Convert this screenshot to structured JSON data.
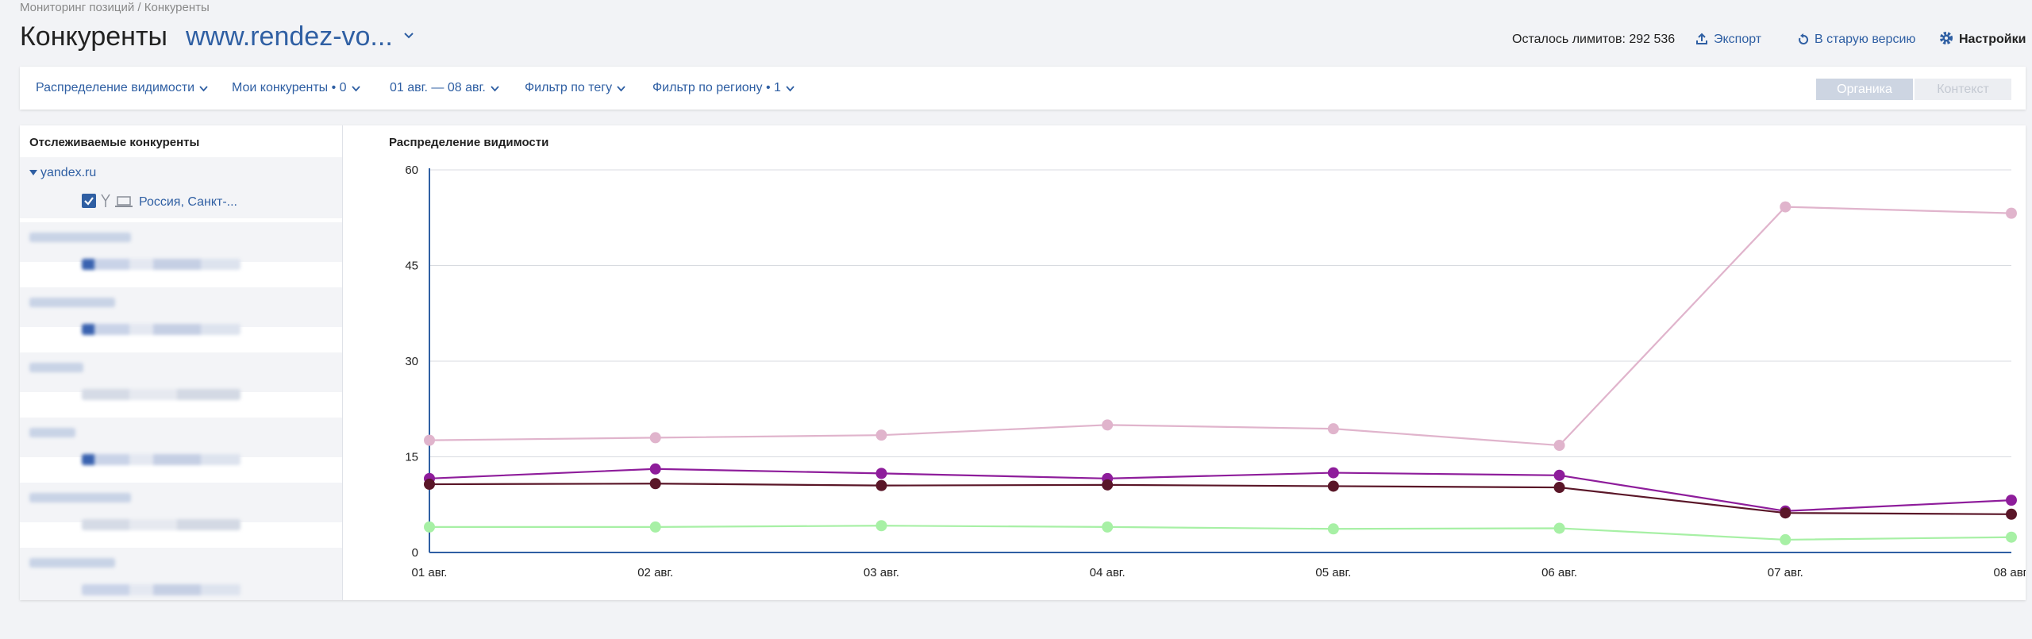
{
  "breadcrumb": "Мониторинг позиций / Конкуренты",
  "header": {
    "title": "Конкуренты",
    "site": "www.rendez-vo...",
    "limits": "Осталось лимитов: 292 536",
    "export_label": "Экспорт",
    "old_version_label": "В старую версию",
    "settings_label": "Настройки"
  },
  "filters": {
    "visibility": "Распределение видимости",
    "competitors": "Мои конкуренты • 0",
    "dates": "01 авг. — 08 авг.",
    "tag": "Фильтр по тегу",
    "region": "Фильтр по региону • 1",
    "organic": "Органика",
    "context": "Контекст"
  },
  "sidebar": {
    "heading": "Отслеживаемые конкуренты",
    "domain": "yandex.ru",
    "region": "Россия, Санкт-..."
  },
  "chart_data": {
    "type": "line",
    "title": "Распределение видимости",
    "x": [
      "01 авг.",
      "02 авг.",
      "03 авг.",
      "04 авг.",
      "05 авг.",
      "06 авг.",
      "07 авг.",
      "08 авг."
    ],
    "yticks": [
      0,
      15,
      30,
      45,
      60
    ],
    "ylim": [
      0,
      60
    ],
    "grid": true,
    "series": [
      {
        "color": "#e0b4cc",
        "values": [
          17.6,
          18.0,
          18.4,
          20.0,
          19.4,
          16.8,
          54.2,
          53.2
        ]
      },
      {
        "color": "#8e1d9b",
        "values": [
          11.6,
          13.1,
          12.4,
          11.6,
          12.5,
          12.1,
          6.5,
          8.2
        ]
      },
      {
        "color": "#5a1628",
        "values": [
          10.7,
          10.8,
          10.5,
          10.6,
          10.4,
          10.2,
          6.2,
          6.0
        ]
      },
      {
        "color": "#a7f0a5",
        "values": [
          4.0,
          4.0,
          4.2,
          4.0,
          3.7,
          3.8,
          2.0,
          2.4
        ]
      }
    ]
  }
}
